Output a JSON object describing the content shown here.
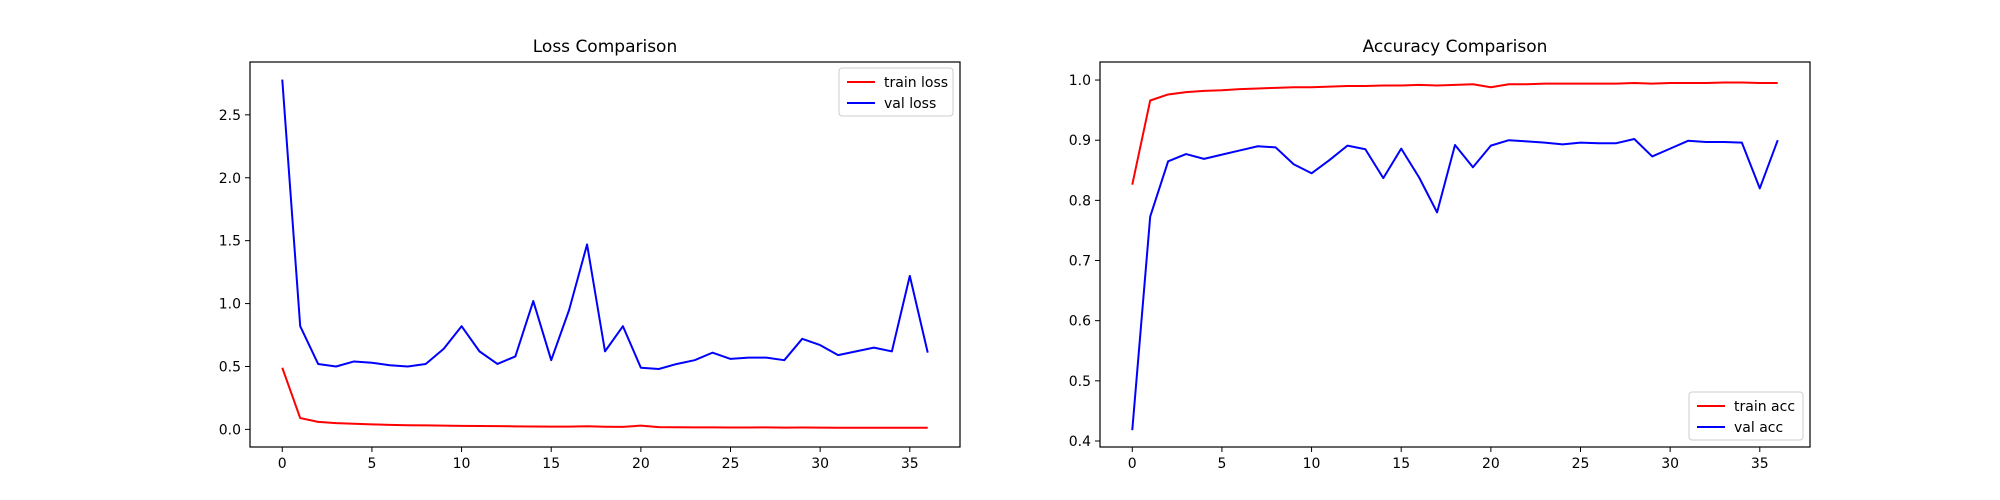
{
  "chart_data": [
    {
      "type": "line",
      "title": "Loss Comparison",
      "xlabel": "",
      "ylabel": "",
      "xlim": [
        -1.8,
        37.8
      ],
      "ylim": [
        -0.14,
        2.92
      ],
      "xticks": [
        0,
        5,
        10,
        15,
        20,
        25,
        30,
        35
      ],
      "yticks": [
        0.0,
        0.5,
        1.0,
        1.5,
        2.0,
        2.5
      ],
      "ytick_labels": [
        "0.0",
        "0.5",
        "1.0",
        "1.5",
        "2.0",
        "2.5"
      ],
      "legend_position": "upper right",
      "x": [
        0,
        1,
        2,
        3,
        4,
        5,
        6,
        7,
        8,
        9,
        10,
        11,
        12,
        13,
        14,
        15,
        16,
        17,
        18,
        19,
        20,
        21,
        22,
        23,
        24,
        25,
        26,
        27,
        28,
        29,
        30,
        31,
        32,
        33,
        34,
        35,
        36
      ],
      "series": [
        {
          "name": "train loss",
          "color": "#ff0000",
          "values": [
            0.49,
            0.09,
            0.06,
            0.05,
            0.045,
            0.04,
            0.036,
            0.033,
            0.032,
            0.03,
            0.028,
            0.027,
            0.026,
            0.024,
            0.023,
            0.022,
            0.022,
            0.025,
            0.021,
            0.02,
            0.03,
            0.018,
            0.017,
            0.016,
            0.016,
            0.015,
            0.015,
            0.016,
            0.014,
            0.015,
            0.014,
            0.013,
            0.013,
            0.013,
            0.013,
            0.013,
            0.013
          ]
        },
        {
          "name": "val loss",
          "color": "#0000ff",
          "values": [
            2.78,
            0.82,
            0.52,
            0.5,
            0.54,
            0.53,
            0.51,
            0.5,
            0.52,
            0.64,
            0.82,
            0.62,
            0.52,
            0.58,
            1.02,
            0.55,
            0.95,
            1.47,
            0.62,
            0.82,
            0.49,
            0.48,
            0.52,
            0.55,
            0.61,
            0.56,
            0.57,
            0.57,
            0.55,
            0.72,
            0.67,
            0.59,
            0.62,
            0.65,
            0.62,
            1.22,
            0.61
          ]
        }
      ]
    },
    {
      "type": "line",
      "title": "Accuracy Comparison",
      "xlabel": "",
      "ylabel": "",
      "xlim": [
        -1.8,
        37.8
      ],
      "ylim": [
        0.39,
        1.03
      ],
      "xticks": [
        0,
        5,
        10,
        15,
        20,
        25,
        30,
        35
      ],
      "yticks": [
        0.4,
        0.5,
        0.6,
        0.7,
        0.8,
        0.9,
        1.0
      ],
      "ytick_labels": [
        "0.4",
        "0.5",
        "0.6",
        "0.7",
        "0.8",
        "0.9",
        "1.0"
      ],
      "legend_position": "lower right",
      "x": [
        0,
        1,
        2,
        3,
        4,
        5,
        6,
        7,
        8,
        9,
        10,
        11,
        12,
        13,
        14,
        15,
        16,
        17,
        18,
        19,
        20,
        21,
        22,
        23,
        24,
        25,
        26,
        27,
        28,
        29,
        30,
        31,
        32,
        33,
        34,
        35,
        36
      ],
      "series": [
        {
          "name": "train acc",
          "color": "#ff0000",
          "values": [
            0.826,
            0.966,
            0.976,
            0.98,
            0.982,
            0.983,
            0.985,
            0.986,
            0.987,
            0.988,
            0.988,
            0.989,
            0.99,
            0.99,
            0.991,
            0.991,
            0.992,
            0.991,
            0.992,
            0.993,
            0.988,
            0.993,
            0.993,
            0.994,
            0.994,
            0.994,
            0.994,
            0.994,
            0.995,
            0.994,
            0.995,
            0.995,
            0.995,
            0.996,
            0.996,
            0.995,
            0.995
          ]
        },
        {
          "name": "val acc",
          "color": "#0000ff",
          "values": [
            0.418,
            0.773,
            0.865,
            0.877,
            0.869,
            0.876,
            0.883,
            0.89,
            0.888,
            0.86,
            0.845,
            0.867,
            0.891,
            0.885,
            0.837,
            0.886,
            0.838,
            0.78,
            0.892,
            0.855,
            0.891,
            0.9,
            0.898,
            0.896,
            0.893,
            0.896,
            0.895,
            0.895,
            0.902,
            0.873,
            0.886,
            0.899,
            0.897,
            0.897,
            0.896,
            0.82,
            0.9
          ]
        }
      ]
    }
  ]
}
